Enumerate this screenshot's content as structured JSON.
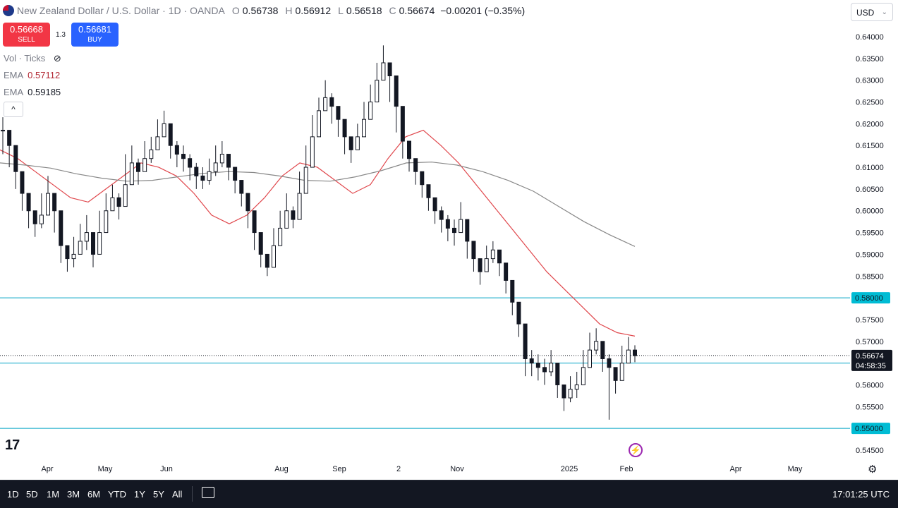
{
  "header": {
    "title": "New Zealand Dollar / U.S. Dollar · 1D · OANDA",
    "o_label": "O",
    "o_value": "0.56738",
    "h_label": "H",
    "h_value": "0.56912",
    "l_label": "L",
    "l_value": "0.56518",
    "c_label": "C",
    "c_value": "0.56674",
    "change": "−0.00201 (−0.35%)"
  },
  "trade": {
    "sell_price": "0.56668",
    "sell_label": "SELL",
    "spread": "1.3",
    "buy_price": "0.56681",
    "buy_label": "BUY"
  },
  "indicators": [
    {
      "name": "Vol · Ticks",
      "value": ""
    },
    {
      "name": "EMA",
      "value": "0.57112"
    },
    {
      "name": "EMA",
      "value": "0.59185"
    }
  ],
  "currency_button": "USD",
  "bottom_bar": {
    "ranges": [
      "1D",
      "5D",
      "1M",
      "3M",
      "6M",
      "YTD",
      "1Y",
      "5Y",
      "All"
    ],
    "clock": "17:01:25 UTC"
  },
  "colors": {
    "up": "#131722",
    "down": "#131722",
    "ema_fast": "#e0474c",
    "ema_slow": "#888888",
    "level_line": "#00a3c4",
    "label_bg": "#00bcd4"
  },
  "chart_data": {
    "type": "candlestick",
    "title": "New Zealand Dollar / U.S. Dollar · 1D · OANDA",
    "ylim": [
      0.5425,
      0.6425
    ],
    "y_ticks": [
      "0.64000",
      "0.63500",
      "0.63000",
      "0.62500",
      "0.62000",
      "0.61500",
      "0.61000",
      "0.60500",
      "0.60000",
      "0.59500",
      "0.59000",
      "0.58500",
      "0.58000",
      "0.57500",
      "0.57000",
      "0.56500",
      "0.56000",
      "0.55500",
      "0.55000",
      "0.54500"
    ],
    "x_labels": [
      "Apr",
      "May",
      "Jun",
      "Aug",
      "Sep",
      "2",
      "Nov",
      "2025",
      "Feb",
      "Apr",
      "May"
    ],
    "horizontal_levels": [
      {
        "value": 0.58,
        "label": "0.58000"
      },
      {
        "value": 0.565,
        "label": "0.56500"
      },
      {
        "value": 0.55,
        "label": "0.55000"
      }
    ],
    "last_price": {
      "value": 0.56674,
      "label": "0.56674",
      "countdown": "04:58:35"
    },
    "close_path": [
      [
        0.6185,
        0.6215,
        0.613
      ],
      [
        0.615,
        0.618,
        0.61
      ],
      [
        0.609,
        0.613,
        0.605
      ],
      [
        0.604,
        0.608,
        0.6
      ],
      [
        0.6,
        0.603,
        0.596
      ],
      [
        0.597,
        0.6,
        0.594
      ],
      [
        0.599,
        0.604,
        0.596
      ],
      [
        0.604,
        0.608,
        0.6
      ],
      [
        0.6,
        0.604,
        0.595
      ],
      [
        0.592,
        0.596,
        0.588
      ],
      [
        0.589,
        0.592,
        0.586
      ],
      [
        0.59,
        0.594,
        0.587
      ],
      [
        0.593,
        0.597,
        0.59
      ],
      [
        0.595,
        0.599,
        0.591
      ],
      [
        0.59,
        0.593,
        0.587
      ],
      [
        0.595,
        0.6,
        0.592
      ],
      [
        0.6,
        0.604,
        0.597
      ],
      [
        0.603,
        0.606,
        0.6
      ],
      [
        0.601,
        0.604,
        0.598
      ],
      [
        0.606,
        0.613,
        0.604
      ],
      [
        0.611,
        0.615,
        0.608
      ],
      [
        0.609,
        0.612,
        0.606
      ],
      [
        0.612,
        0.616,
        0.609
      ],
      [
        0.614,
        0.617,
        0.611
      ],
      [
        0.617,
        0.621,
        0.614
      ],
      [
        0.62,
        0.623,
        0.617
      ],
      [
        0.615,
        0.619,
        0.612
      ],
      [
        0.613,
        0.616,
        0.61
      ],
      [
        0.612,
        0.615,
        0.609
      ],
      [
        0.61,
        0.613,
        0.607
      ],
      [
        0.608,
        0.611,
        0.605
      ],
      [
        0.607,
        0.61,
        0.605
      ],
      [
        0.609,
        0.612,
        0.606
      ],
      [
        0.611,
        0.615,
        0.608
      ],
      [
        0.613,
        0.616,
        0.61
      ],
      [
        0.61,
        0.613,
        0.607
      ],
      [
        0.607,
        0.61,
        0.604
      ],
      [
        0.604,
        0.607,
        0.601
      ],
      [
        0.6,
        0.603,
        0.596
      ],
      [
        0.595,
        0.599,
        0.591
      ],
      [
        0.59,
        0.594,
        0.587
      ],
      [
        0.587,
        0.59,
        0.585
      ],
      [
        0.592,
        0.596,
        0.588
      ],
      [
        0.596,
        0.6,
        0.593
      ],
      [
        0.6,
        0.604,
        0.597
      ],
      [
        0.598,
        0.601,
        0.596
      ],
      [
        0.604,
        0.609,
        0.601
      ],
      [
        0.61,
        0.615,
        0.607
      ],
      [
        0.617,
        0.622,
        0.614
      ],
      [
        0.623,
        0.626,
        0.62
      ],
      [
        0.626,
        0.63,
        0.623
      ],
      [
        0.624,
        0.627,
        0.62
      ],
      [
        0.621,
        0.624,
        0.617
      ],
      [
        0.617,
        0.62,
        0.613
      ],
      [
        0.614,
        0.617,
        0.611
      ],
      [
        0.617,
        0.62,
        0.614
      ],
      [
        0.621,
        0.625,
        0.618
      ],
      [
        0.625,
        0.629,
        0.622
      ],
      [
        0.63,
        0.634,
        0.627
      ],
      [
        0.634,
        0.638,
        0.631
      ],
      [
        0.631,
        0.634,
        0.625
      ],
      [
        0.624,
        0.627,
        0.618
      ],
      [
        0.616,
        0.619,
        0.612
      ],
      [
        0.612,
        0.615,
        0.609
      ],
      [
        0.609,
        0.612,
        0.606
      ],
      [
        0.606,
        0.609,
        0.603
      ],
      [
        0.603,
        0.606,
        0.6
      ],
      [
        0.6,
        0.603,
        0.597
      ],
      [
        0.598,
        0.601,
        0.595
      ],
      [
        0.596,
        0.599,
        0.593
      ],
      [
        0.595,
        0.598,
        0.592
      ],
      [
        0.598,
        0.602,
        0.595
      ],
      [
        0.593,
        0.596,
        0.589
      ],
      [
        0.589,
        0.592,
        0.586
      ],
      [
        0.586,
        0.589,
        0.583
      ],
      [
        0.589,
        0.592,
        0.586
      ],
      [
        0.591,
        0.593,
        0.588
      ],
      [
        0.588,
        0.591,
        0.585
      ],
      [
        0.584,
        0.588,
        0.581
      ],
      [
        0.579,
        0.582,
        0.576
      ],
      [
        0.574,
        0.577,
        0.571
      ],
      [
        0.566,
        0.57,
        0.562
      ],
      [
        0.565,
        0.568,
        0.562
      ],
      [
        0.564,
        0.567,
        0.561
      ],
      [
        0.563,
        0.566,
        0.56
      ],
      [
        0.565,
        0.568,
        0.562
      ],
      [
        0.56,
        0.563,
        0.557
      ],
      [
        0.557,
        0.56,
        0.554
      ],
      [
        0.559,
        0.562,
        0.556
      ],
      [
        0.56,
        0.563,
        0.557
      ],
      [
        0.564,
        0.568,
        0.561
      ],
      [
        0.568,
        0.572,
        0.565
      ],
      [
        0.57,
        0.573,
        0.567
      ],
      [
        0.566,
        0.569,
        0.563
      ],
      [
        0.564,
        0.567,
        0.552
      ],
      [
        0.561,
        0.564,
        0.558
      ],
      [
        0.565,
        0.569,
        0.562
      ],
      [
        0.568,
        0.571,
        0.565
      ],
      [
        0.5667,
        0.5691,
        0.5652
      ]
    ],
    "ema_fast": [
      0.614,
      0.612,
      0.609,
      0.606,
      0.603,
      0.602,
      0.605,
      0.608,
      0.611,
      0.61,
      0.608,
      0.604,
      0.599,
      0.597,
      0.599,
      0.603,
      0.608,
      0.611,
      0.61,
      0.607,
      0.604,
      0.606,
      0.612,
      0.617,
      0.6185,
      0.615,
      0.611,
      0.606,
      0.601,
      0.596,
      0.591,
      0.586,
      0.582,
      0.578,
      0.574,
      0.572,
      0.5712
    ],
    "ema_slow": [
      0.611,
      0.6105,
      0.6098,
      0.6085,
      0.6075,
      0.6068,
      0.607,
      0.6078,
      0.6086,
      0.609,
      0.6088,
      0.608,
      0.607,
      0.6068,
      0.6078,
      0.6092,
      0.611,
      0.6112,
      0.6105,
      0.609,
      0.607,
      0.6045,
      0.601,
      0.5975,
      0.5945,
      0.5918
    ],
    "ylabel": "USD"
  }
}
